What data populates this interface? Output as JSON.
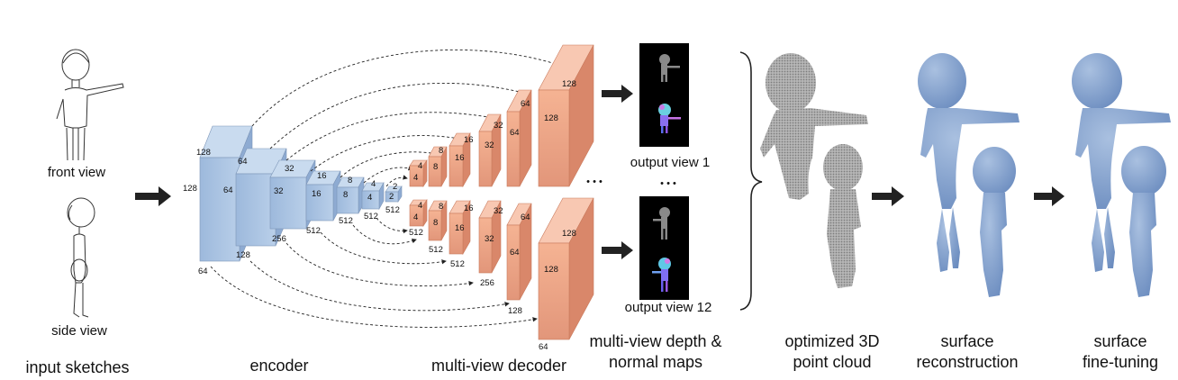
{
  "captions": {
    "input_sketches": "input sketches",
    "front_view": "front view",
    "side_view": "side view",
    "encoder": "encoder",
    "decoder": "multi-view decoder",
    "maps_line1": "multi-view depth &",
    "maps_line2": "normal maps",
    "output_view_1": "output view 1",
    "output_view_12": "output view 12",
    "point_cloud_line1": "optimized 3D",
    "point_cloud_line2": "point cloud",
    "surface_line1": "surface",
    "surface_line2": "reconstruction",
    "finetune_line1": "surface",
    "finetune_line2": "fine-tuning",
    "dots": "• • •"
  },
  "encoder_dims": {
    "b1": [
      "128",
      "128",
      "64"
    ],
    "b2": [
      "64",
      "64",
      "128"
    ],
    "b3": [
      "32",
      "32",
      "256"
    ],
    "b4": [
      "16",
      "16",
      "512"
    ],
    "b5": [
      "8",
      "8",
      "512"
    ],
    "b6": [
      "4",
      "4",
      "512"
    ],
    "b7": [
      "2",
      "2",
      "512"
    ]
  },
  "decoder_top_dims": [
    "4",
    "4",
    "8",
    "8",
    "16",
    "16",
    "32",
    "32",
    "64",
    "64",
    "128",
    "128"
  ],
  "decoder_bottom_dims": [
    "4",
    "4",
    "8",
    "8",
    "16",
    "16",
    "32",
    "32",
    "64",
    "64",
    "128",
    "128",
    "512",
    "512",
    "512",
    "256",
    "128",
    "64"
  ],
  "colors": {
    "encoder_blue": "#a9c3e3",
    "decoder_salmon": "#f2a88a",
    "mesh_blue": "#7f9ecc",
    "cloud_gray": "#9c9c9c"
  }
}
